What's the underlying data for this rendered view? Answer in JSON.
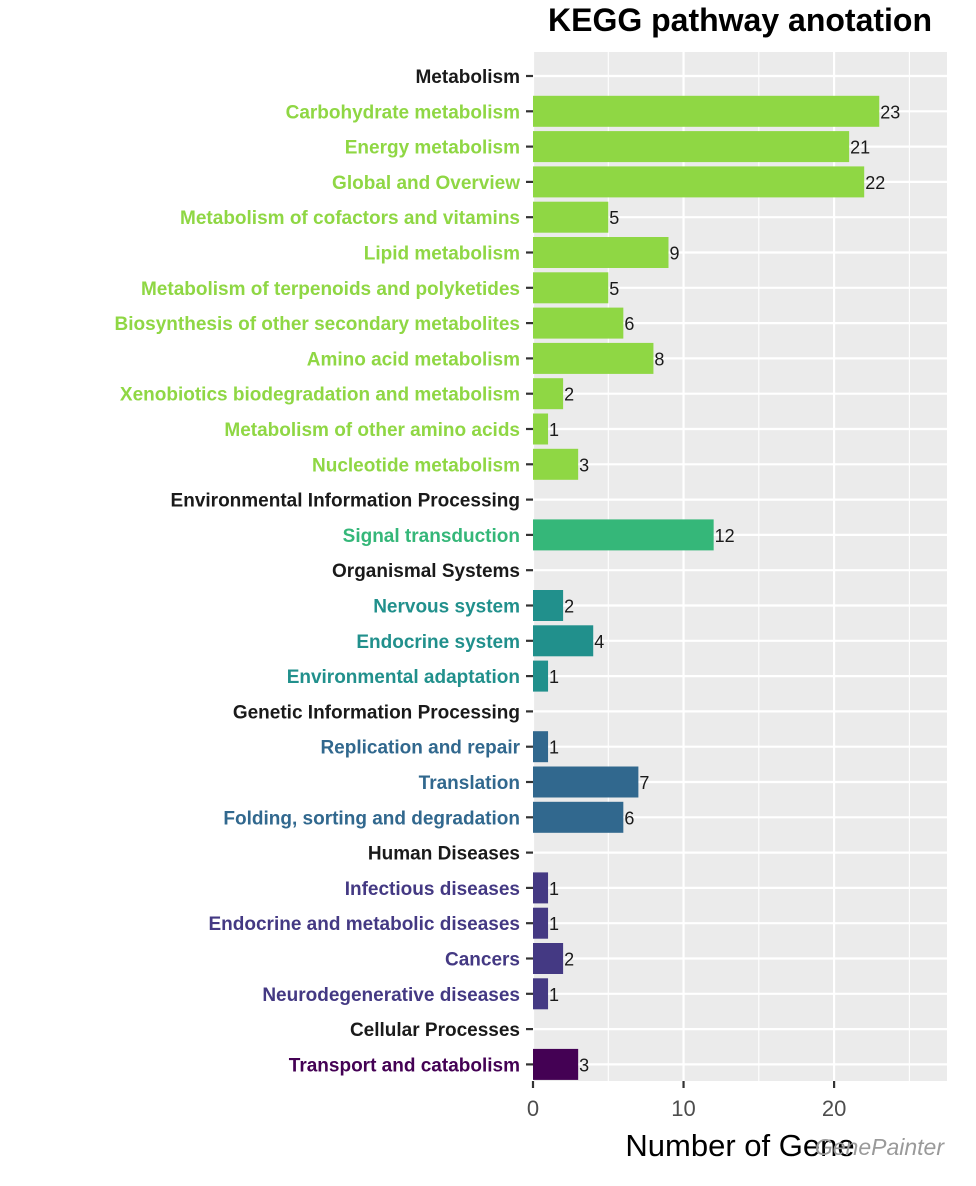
{
  "chart_data": {
    "type": "bar",
    "orientation": "horizontal",
    "title": "KEGG pathway anotation",
    "xlabel": "Number of Gene",
    "ylabel": "",
    "xlim": [
      0,
      27.5
    ],
    "xticks": [
      0,
      10,
      20
    ],
    "grid": true,
    "legend": "none",
    "categories": [
      {
        "label": "Metabolism",
        "value": null,
        "header": true,
        "color": "#1a1a1a"
      },
      {
        "label": "Carbohydrate metabolism",
        "value": 23,
        "color": "#8fd744"
      },
      {
        "label": "Energy metabolism",
        "value": 21,
        "color": "#8fd744"
      },
      {
        "label": "Global and Overview",
        "value": 22,
        "color": "#8fd744"
      },
      {
        "label": "Metabolism of cofactors and vitamins",
        "value": 5,
        "color": "#8fd744"
      },
      {
        "label": "Lipid metabolism",
        "value": 9,
        "color": "#8fd744"
      },
      {
        "label": "Metabolism of terpenoids and polyketides",
        "value": 5,
        "color": "#8fd744"
      },
      {
        "label": "Biosynthesis of other secondary metabolites",
        "value": 6,
        "color": "#8fd744"
      },
      {
        "label": "Amino acid metabolism",
        "value": 8,
        "color": "#8fd744"
      },
      {
        "label": "Xenobiotics biodegradation and metabolism",
        "value": 2,
        "color": "#8fd744"
      },
      {
        "label": "Metabolism of other amino acids",
        "value": 1,
        "color": "#8fd744"
      },
      {
        "label": "Nucleotide metabolism",
        "value": 3,
        "color": "#8fd744"
      },
      {
        "label": "Environmental Information Processing",
        "value": null,
        "header": true,
        "color": "#1a1a1a"
      },
      {
        "label": "Signal transduction",
        "value": 12,
        "color": "#35b779"
      },
      {
        "label": "Organismal Systems",
        "value": null,
        "header": true,
        "color": "#1a1a1a"
      },
      {
        "label": "Nervous system",
        "value": 2,
        "color": "#21908c"
      },
      {
        "label": "Endocrine system",
        "value": 4,
        "color": "#21908c"
      },
      {
        "label": "Environmental adaptation",
        "value": 1,
        "color": "#21908c"
      },
      {
        "label": "Genetic Information Processing",
        "value": null,
        "header": true,
        "color": "#1a1a1a"
      },
      {
        "label": "Replication and repair",
        "value": 1,
        "color": "#31688e"
      },
      {
        "label": "Translation",
        "value": 7,
        "color": "#31688e"
      },
      {
        "label": "Folding, sorting and degradation",
        "value": 6,
        "color": "#31688e"
      },
      {
        "label": "Human Diseases",
        "value": null,
        "header": true,
        "color": "#1a1a1a"
      },
      {
        "label": "Infectious diseases",
        "value": 1,
        "color": "#443983"
      },
      {
        "label": "Endocrine and metabolic diseases",
        "value": 1,
        "color": "#443983"
      },
      {
        "label": "Cancers",
        "value": 2,
        "color": "#443983"
      },
      {
        "label": "Neurodegenerative diseases",
        "value": 1,
        "color": "#443983"
      },
      {
        "label": "Cellular Processes",
        "value": null,
        "header": true,
        "color": "#1a1a1a"
      },
      {
        "label": "Transport and catabolism",
        "value": 3,
        "color": "#440154"
      }
    ]
  },
  "colors": {
    "panel_background": "#ebebeb",
    "grid_line": "#ffffff"
  },
  "watermark": "GenePainter"
}
